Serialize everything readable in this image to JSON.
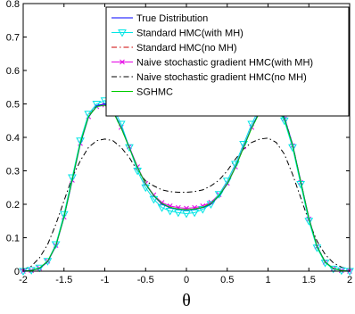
{
  "chart_data": {
    "type": "line",
    "title": "",
    "xlabel": "θ",
    "ylabel": "",
    "xlim": [
      -2,
      2
    ],
    "ylim": [
      0,
      0.8
    ],
    "x_ticks": [
      "-2",
      "-1.5",
      "-1",
      "-0.5",
      "0",
      "0.5",
      "1",
      "1.5",
      "2"
    ],
    "y_ticks": [
      "0",
      "0.1",
      "0.2",
      "0.3",
      "0.4",
      "0.5",
      "0.6",
      "0.7",
      "0.8"
    ],
    "grid": false,
    "legend_position": "top-right",
    "series": [
      {
        "name": "True Distribution",
        "color": "#0000ff",
        "style": "solid",
        "marker": "none",
        "x": [
          -2.0,
          -1.9,
          -1.8,
          -1.7,
          -1.6,
          -1.5,
          -1.4,
          -1.3,
          -1.2,
          -1.1,
          -1.0,
          -0.9,
          -0.8,
          -0.7,
          -0.6,
          -0.5,
          -0.4,
          -0.3,
          -0.2,
          -0.1,
          0.0,
          0.1,
          0.2,
          0.3,
          0.4,
          0.5,
          0.6,
          0.7,
          0.8,
          0.9,
          1.0,
          1.1,
          1.2,
          1.3,
          1.4,
          1.5,
          1.6,
          1.7,
          1.8,
          1.9,
          2.0
        ],
        "values": [
          0.0,
          0.002,
          0.008,
          0.028,
          0.075,
          0.16,
          0.27,
          0.38,
          0.46,
          0.495,
          0.5,
          0.48,
          0.43,
          0.37,
          0.31,
          0.26,
          0.225,
          0.2,
          0.19,
          0.185,
          0.183,
          0.185,
          0.19,
          0.2,
          0.225,
          0.26,
          0.31,
          0.37,
          0.43,
          0.48,
          0.5,
          0.495,
          0.46,
          0.38,
          0.27,
          0.16,
          0.075,
          0.028,
          0.008,
          0.002,
          0.0
        ]
      },
      {
        "name": "Standard HMC(with MH)",
        "color": "#00e5e5",
        "style": "solid",
        "marker": "triangle-down",
        "x": [
          -2.0,
          -1.9,
          -1.8,
          -1.7,
          -1.6,
          -1.5,
          -1.4,
          -1.3,
          -1.2,
          -1.1,
          -1.0,
          -0.9,
          -0.8,
          -0.7,
          -0.6,
          -0.5,
          -0.4,
          -0.3,
          -0.2,
          -0.1,
          0.0,
          0.1,
          0.2,
          0.3,
          0.4,
          0.5,
          0.6,
          0.7,
          0.8,
          0.9,
          1.0,
          1.1,
          1.2,
          1.3,
          1.4,
          1.5,
          1.6,
          1.7,
          1.8,
          1.9,
          2.0
        ],
        "values": [
          0.0,
          0.003,
          0.01,
          0.03,
          0.08,
          0.17,
          0.28,
          0.39,
          0.47,
          0.5,
          0.51,
          0.49,
          0.44,
          0.37,
          0.3,
          0.25,
          0.215,
          0.19,
          0.18,
          0.175,
          0.172,
          0.175,
          0.185,
          0.2,
          0.23,
          0.27,
          0.32,
          0.38,
          0.44,
          0.49,
          0.5,
          0.49,
          0.45,
          0.37,
          0.26,
          0.15,
          0.07,
          0.025,
          0.007,
          0.002,
          0.0
        ]
      },
      {
        "name": "Standard HMC(no MH)",
        "color": "#cc0000",
        "style": "dashdot",
        "marker": "none",
        "x": [
          -2.0,
          -1.9,
          -1.8,
          -1.7,
          -1.6,
          -1.5,
          -1.4,
          -1.3,
          -1.2,
          -1.1,
          -1.0,
          -0.9,
          -0.8,
          -0.7,
          -0.6,
          -0.5,
          -0.4,
          -0.3,
          -0.2,
          -0.1,
          0.0,
          0.1,
          0.2,
          0.3,
          0.4,
          0.5,
          0.6,
          0.7,
          0.8,
          0.9,
          1.0,
          1.1,
          1.2,
          1.3,
          1.4,
          1.5,
          1.6,
          1.7,
          1.8,
          1.9,
          2.0
        ],
        "values": [
          0.0,
          0.003,
          0.01,
          0.03,
          0.078,
          0.165,
          0.275,
          0.385,
          0.465,
          0.495,
          0.498,
          0.478,
          0.43,
          0.37,
          0.31,
          0.262,
          0.226,
          0.202,
          0.19,
          0.186,
          0.184,
          0.186,
          0.192,
          0.203,
          0.227,
          0.262,
          0.31,
          0.37,
          0.43,
          0.478,
          0.498,
          0.495,
          0.462,
          0.38,
          0.27,
          0.16,
          0.075,
          0.028,
          0.008,
          0.002,
          0.0
        ]
      },
      {
        "name": "Naive stochastic gradient HMC(with MH)",
        "color": "#e500e5",
        "style": "solid",
        "marker": "x",
        "x": [
          -2.0,
          -1.9,
          -1.8,
          -1.7,
          -1.6,
          -1.5,
          -1.4,
          -1.3,
          -1.2,
          -1.1,
          -1.0,
          -0.9,
          -0.8,
          -0.7,
          -0.6,
          -0.5,
          -0.4,
          -0.3,
          -0.2,
          -0.1,
          0.0,
          0.1,
          0.2,
          0.3,
          0.4,
          0.5,
          0.6,
          0.7,
          0.8,
          0.9,
          1.0,
          1.1,
          1.2,
          1.3,
          1.4,
          1.5,
          1.6,
          1.7,
          1.8,
          1.9,
          2.0
        ],
        "values": [
          0.0,
          0.002,
          0.009,
          0.03,
          0.077,
          0.162,
          0.272,
          0.382,
          0.462,
          0.492,
          0.497,
          0.478,
          0.43,
          0.372,
          0.312,
          0.262,
          0.228,
          0.205,
          0.195,
          0.19,
          0.188,
          0.19,
          0.195,
          0.206,
          0.229,
          0.263,
          0.312,
          0.372,
          0.43,
          0.476,
          0.495,
          0.49,
          0.455,
          0.375,
          0.265,
          0.156,
          0.073,
          0.027,
          0.008,
          0.002,
          0.0
        ]
      },
      {
        "name": "Naive stochastic gradient HMC(no MH)",
        "color": "#000000",
        "style": "dashdot",
        "marker": "none",
        "x": [
          -2.0,
          -1.9,
          -1.8,
          -1.7,
          -1.6,
          -1.5,
          -1.4,
          -1.3,
          -1.2,
          -1.1,
          -1.0,
          -0.9,
          -0.8,
          -0.7,
          -0.6,
          -0.5,
          -0.4,
          -0.3,
          -0.2,
          -0.1,
          0.0,
          0.1,
          0.2,
          0.3,
          0.4,
          0.5,
          0.6,
          0.7,
          0.8,
          0.9,
          1.0,
          1.1,
          1.2,
          1.3,
          1.4,
          1.5,
          1.6,
          1.7,
          1.8,
          1.9,
          2.0
        ],
        "values": [
          0.005,
          0.015,
          0.04,
          0.08,
          0.14,
          0.21,
          0.28,
          0.33,
          0.37,
          0.39,
          0.395,
          0.39,
          0.37,
          0.34,
          0.3,
          0.27,
          0.255,
          0.243,
          0.238,
          0.236,
          0.236,
          0.238,
          0.243,
          0.255,
          0.272,
          0.3,
          0.335,
          0.365,
          0.385,
          0.395,
          0.398,
          0.385,
          0.35,
          0.29,
          0.22,
          0.15,
          0.09,
          0.05,
          0.025,
          0.012,
          0.005
        ]
      },
      {
        "name": "SGHMC",
        "color": "#00cc00",
        "style": "solid",
        "marker": "none",
        "x": [
          -2.0,
          -1.9,
          -1.8,
          -1.7,
          -1.6,
          -1.5,
          -1.4,
          -1.3,
          -1.2,
          -1.1,
          -1.0,
          -0.9,
          -0.8,
          -0.7,
          -0.6,
          -0.5,
          -0.4,
          -0.3,
          -0.2,
          -0.1,
          0.0,
          0.1,
          0.2,
          0.3,
          0.4,
          0.5,
          0.6,
          0.7,
          0.8,
          0.9,
          1.0,
          1.1,
          1.2,
          1.3,
          1.4,
          1.5,
          1.6,
          1.7,
          1.8,
          1.9,
          2.0
        ],
        "values": [
          0.0,
          0.002,
          0.009,
          0.03,
          0.076,
          0.162,
          0.273,
          0.383,
          0.462,
          0.492,
          0.496,
          0.477,
          0.428,
          0.369,
          0.31,
          0.261,
          0.226,
          0.202,
          0.191,
          0.186,
          0.184,
          0.186,
          0.191,
          0.202,
          0.226,
          0.261,
          0.31,
          0.369,
          0.428,
          0.476,
          0.494,
          0.49,
          0.456,
          0.377,
          0.268,
          0.158,
          0.074,
          0.027,
          0.008,
          0.002,
          0.0
        ]
      }
    ]
  }
}
